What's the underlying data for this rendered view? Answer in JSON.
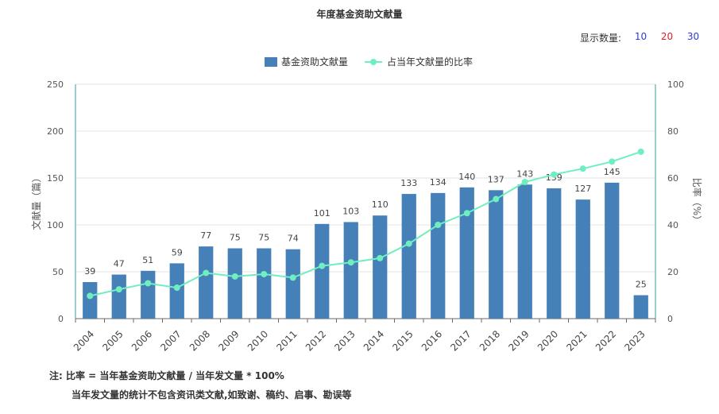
{
  "title": "年度基金资助文献量",
  "display_count": {
    "label": "显示数量:",
    "options": [
      {
        "label": "10",
        "color": "#2a3cd6"
      },
      {
        "label": "20",
        "color": "#e02020"
      },
      {
        "label": "30",
        "color": "#2a3cd6"
      }
    ]
  },
  "colors": {
    "bar": "#4581b8",
    "line": "#6fefbf",
    "axis_teal": "#3a9aa0",
    "grid": "#e3e3e3"
  },
  "chart_data": {
    "type": "bar",
    "categories": [
      "2004",
      "2005",
      "2006",
      "2007",
      "2008",
      "2009",
      "2010",
      "2011",
      "2012",
      "2013",
      "2014",
      "2015",
      "2016",
      "2017",
      "2018",
      "2019",
      "2020",
      "2021",
      "2022",
      "2023"
    ],
    "series": [
      {
        "name": "基金资助文献量",
        "type": "bar",
        "axis": "left",
        "values": [
          39,
          47,
          51,
          59,
          77,
          75,
          75,
          74,
          101,
          103,
          110,
          133,
          134,
          140,
          137,
          143,
          139,
          127,
          145,
          25
        ]
      },
      {
        "name": "占当年文献量的比率",
        "type": "line",
        "axis": "right",
        "values": [
          9.7,
          12.5,
          15.1,
          13.2,
          19.5,
          18,
          19,
          17.5,
          22.5,
          24,
          25.8,
          32,
          40,
          45,
          51,
          58.3,
          61.5,
          64,
          67,
          71.2
        ]
      }
    ],
    "ylabel": "文献量（篇）",
    "y2label": "比率（%）",
    "ylim": [
      0,
      250
    ],
    "y2lim": [
      0,
      100
    ],
    "yticks": [
      "0",
      "50",
      "100",
      "150",
      "200",
      "250"
    ],
    "y2ticks": [
      "0",
      "20",
      "40",
      "60",
      "80",
      "100"
    ],
    "legend": "top-center",
    "grid": true
  },
  "notes": {
    "line1": "注:  比率 = 当年基金资助文献量 / 当年发文量 * 100%",
    "line2": "当年发文量的统计不包含资讯类文献,如致谢、稿约、启事、勘误等"
  }
}
